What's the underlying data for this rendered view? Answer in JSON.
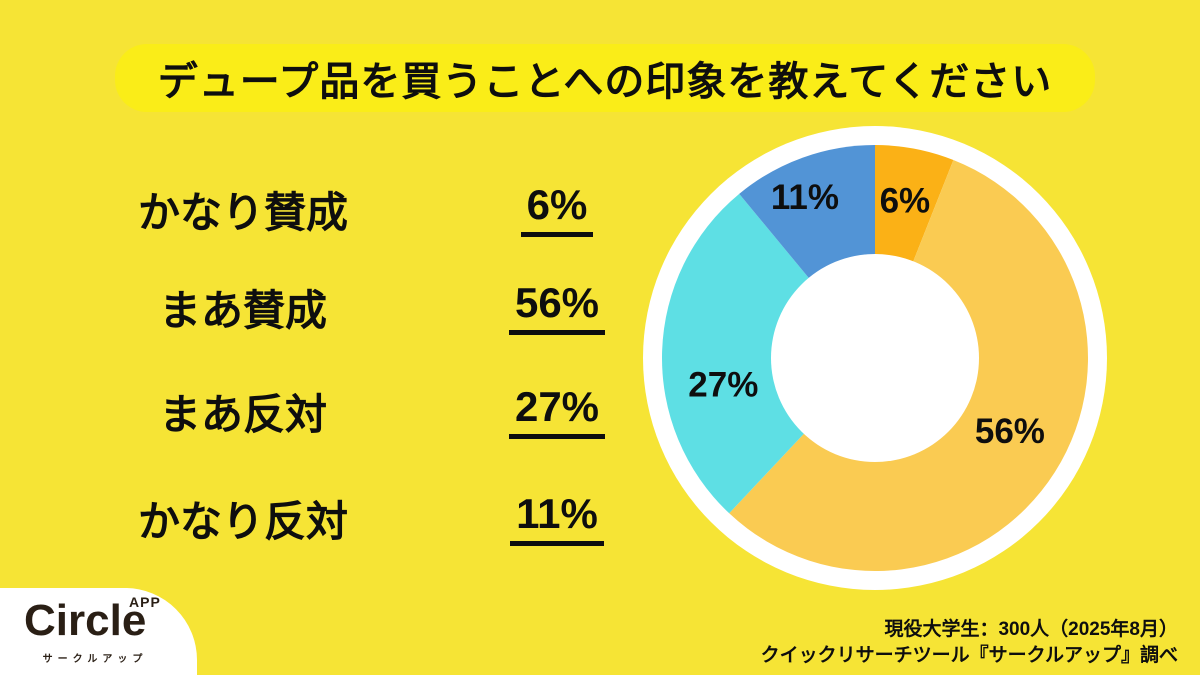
{
  "page": {
    "background_color": "#F6E435",
    "title_box_color": "#FAED18",
    "text_color": "#0E0E0E"
  },
  "title": {
    "text": "デュープ品を買うことへの印象を教えてください"
  },
  "legend": {
    "rows": [
      {
        "label": "かなり賛成",
        "value": "6%"
      },
      {
        "label": "まあ賛成",
        "value": "56%"
      },
      {
        "label": "まあ反対",
        "value": "27%"
      },
      {
        "label": "かなり反対",
        "value": "11%"
      }
    ]
  },
  "chart_data": {
    "type": "pie",
    "donut": true,
    "categories": [
      "かなり賛成",
      "まあ賛成",
      "まあ反対",
      "かなり反対"
    ],
    "values": [
      6,
      56,
      27,
      11
    ],
    "unit": "%",
    "colors": [
      "#FBB116",
      "#FACB52",
      "#5EDFE4",
      "#5294D6"
    ],
    "start_angle_deg": 0,
    "direction": "clockwise",
    "ring_color": "#FFFFFF",
    "hole_color": "#FFFFFF",
    "outer_white_r": 232,
    "pie_r": 213,
    "hole_r": 104,
    "label_r_ratio": 0.75,
    "label_nudges": [
      [
        0,
        0
      ],
      [
        0,
        -12
      ],
      [
        8,
        32
      ],
      [
        -16,
        -10
      ]
    ],
    "label_color": "#0E0E0E",
    "label_font_size": 35
  },
  "footer": {
    "logo": {
      "brand": "Circle",
      "badge": "APP",
      "subtitle": "サークルアップ"
    },
    "source_line1": "現役大学生：300人（2025年8月）",
    "source_line2": "クイックリサーチツール『サークルアップ』調べ"
  }
}
